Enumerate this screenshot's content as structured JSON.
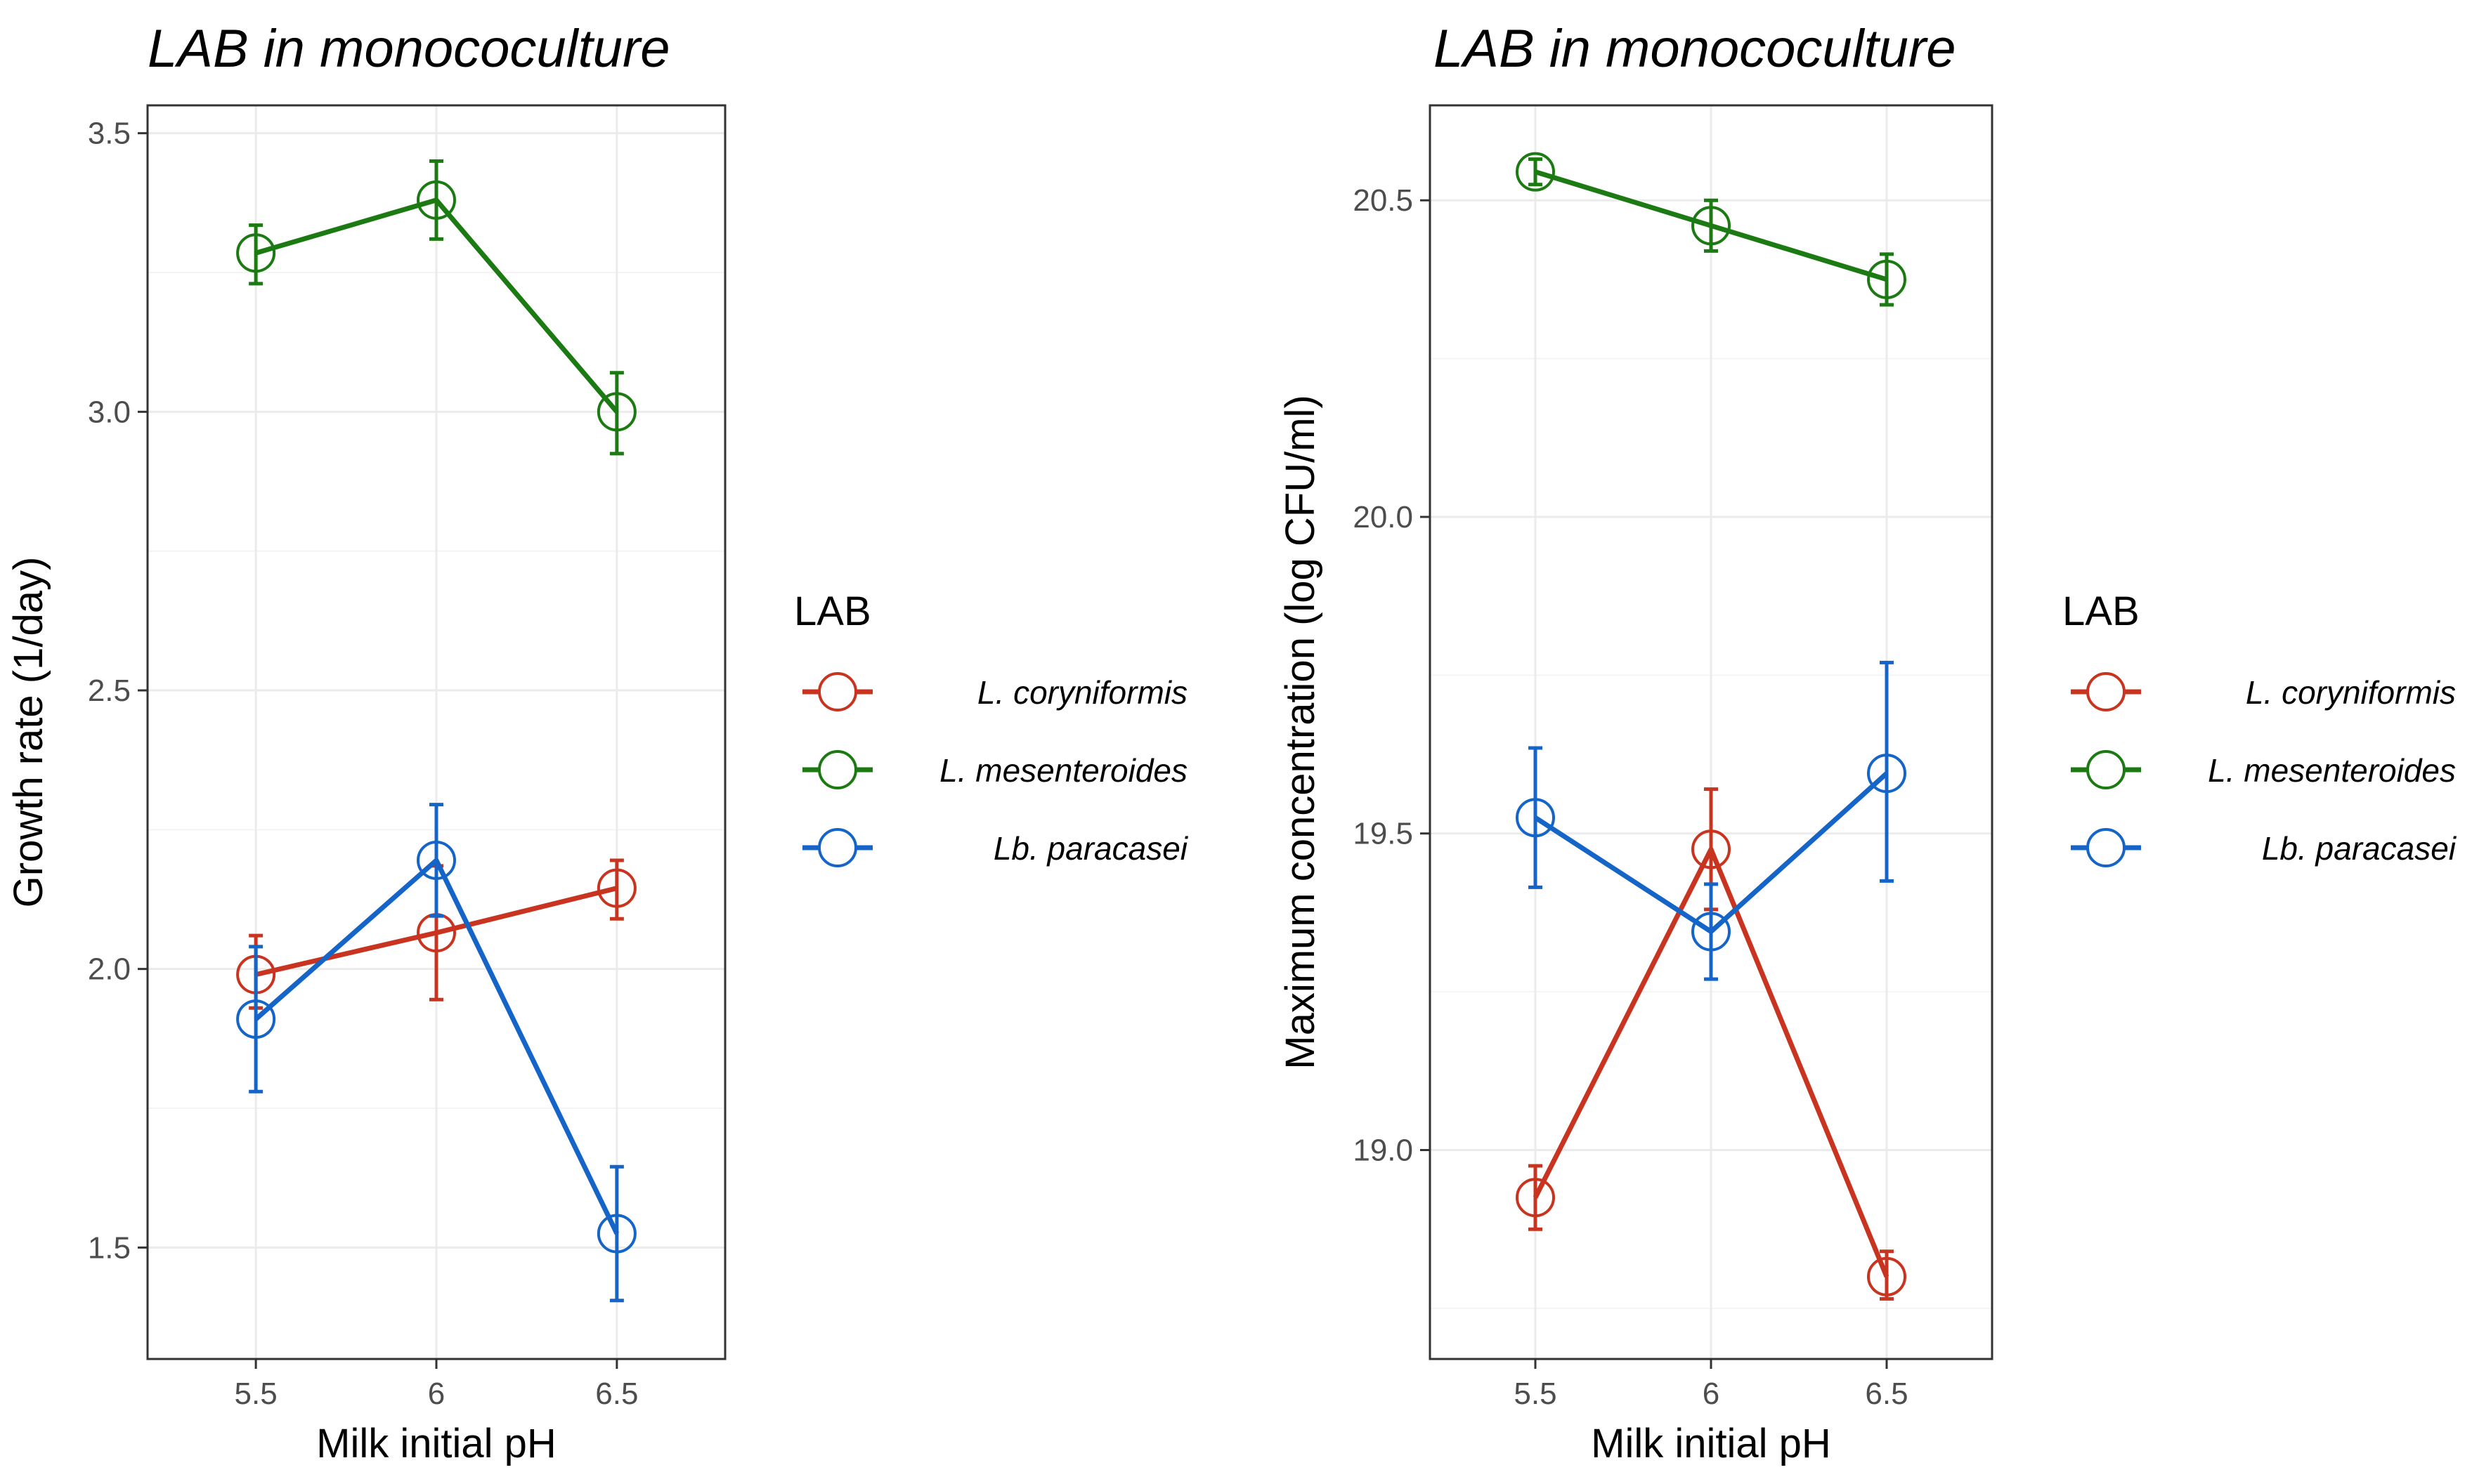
{
  "chart_data": [
    {
      "type": "line",
      "title": "LAB in monococulture",
      "xlabel": "Milk initial pH",
      "ylabel": "Growth rate (1/day)",
      "x": [
        "5.5",
        "6",
        "6.5"
      ],
      "ylim": [
        1.3,
        3.55
      ],
      "yticks": [
        "1.5",
        "2.0",
        "2.5",
        "3.0",
        "3.5"
      ],
      "ytick_values": [
        1.5,
        2.0,
        2.5,
        3.0,
        3.5
      ],
      "grid": true,
      "series": [
        {
          "name": "L. coryniformis",
          "color": "#c8341f",
          "values": [
            1.99,
            2.065,
            2.145
          ],
          "err_low": [
            1.93,
            1.945,
            2.09
          ],
          "err_high": [
            2.06,
            2.185,
            2.195
          ]
        },
        {
          "name": "L. mesenteroides",
          "color": "#1b7a12",
          "values": [
            3.285,
            3.38,
            3.0
          ],
          "err_low": [
            3.23,
            3.31,
            2.925
          ],
          "err_high": [
            3.335,
            3.45,
            3.07
          ]
        },
        {
          "name": "Lb. paracasei",
          "color": "#1565c8",
          "values": [
            1.91,
            2.195,
            1.525
          ],
          "err_low": [
            1.78,
            2.095,
            1.405
          ],
          "err_high": [
            2.04,
            2.295,
            1.645
          ]
        }
      ]
    },
    {
      "type": "line",
      "title": "LAB in monococulture",
      "xlabel": "Milk initial pH",
      "ylabel": "Maximum concentration (log CFU/ml)",
      "x": [
        "5.5",
        "6",
        "6.5"
      ],
      "ylim": [
        18.67,
        20.65
      ],
      "yticks": [
        "19.0",
        "19.5",
        "20.0",
        "20.5"
      ],
      "ytick_values": [
        19.0,
        19.5,
        20.0,
        20.5
      ],
      "grid": true,
      "series": [
        {
          "name": "L. coryniformis",
          "color": "#c8341f",
          "values": [
            18.925,
            19.475,
            18.8
          ],
          "err_low": [
            18.875,
            19.38,
            18.765
          ],
          "err_high": [
            18.975,
            19.57,
            18.84
          ]
        },
        {
          "name": "L. mesenteroides",
          "color": "#1b7a12",
          "values": [
            20.545,
            20.46,
            20.375
          ],
          "err_low": [
            20.525,
            20.42,
            20.335
          ],
          "err_high": [
            20.565,
            20.5,
            20.415
          ]
        },
        {
          "name": "Lb. paracasei",
          "color": "#1565c8",
          "values": [
            19.525,
            19.345,
            19.595
          ],
          "err_low": [
            19.415,
            19.27,
            19.425
          ],
          "err_high": [
            19.635,
            19.42,
            19.77
          ]
        }
      ]
    }
  ],
  "legend": {
    "title": "LAB",
    "entries": [
      "L. coryniformis",
      "L. mesenteroides",
      "Lb. paracasei"
    ],
    "colors": [
      "#c8341f",
      "#1b7a12",
      "#1565c8"
    ]
  }
}
